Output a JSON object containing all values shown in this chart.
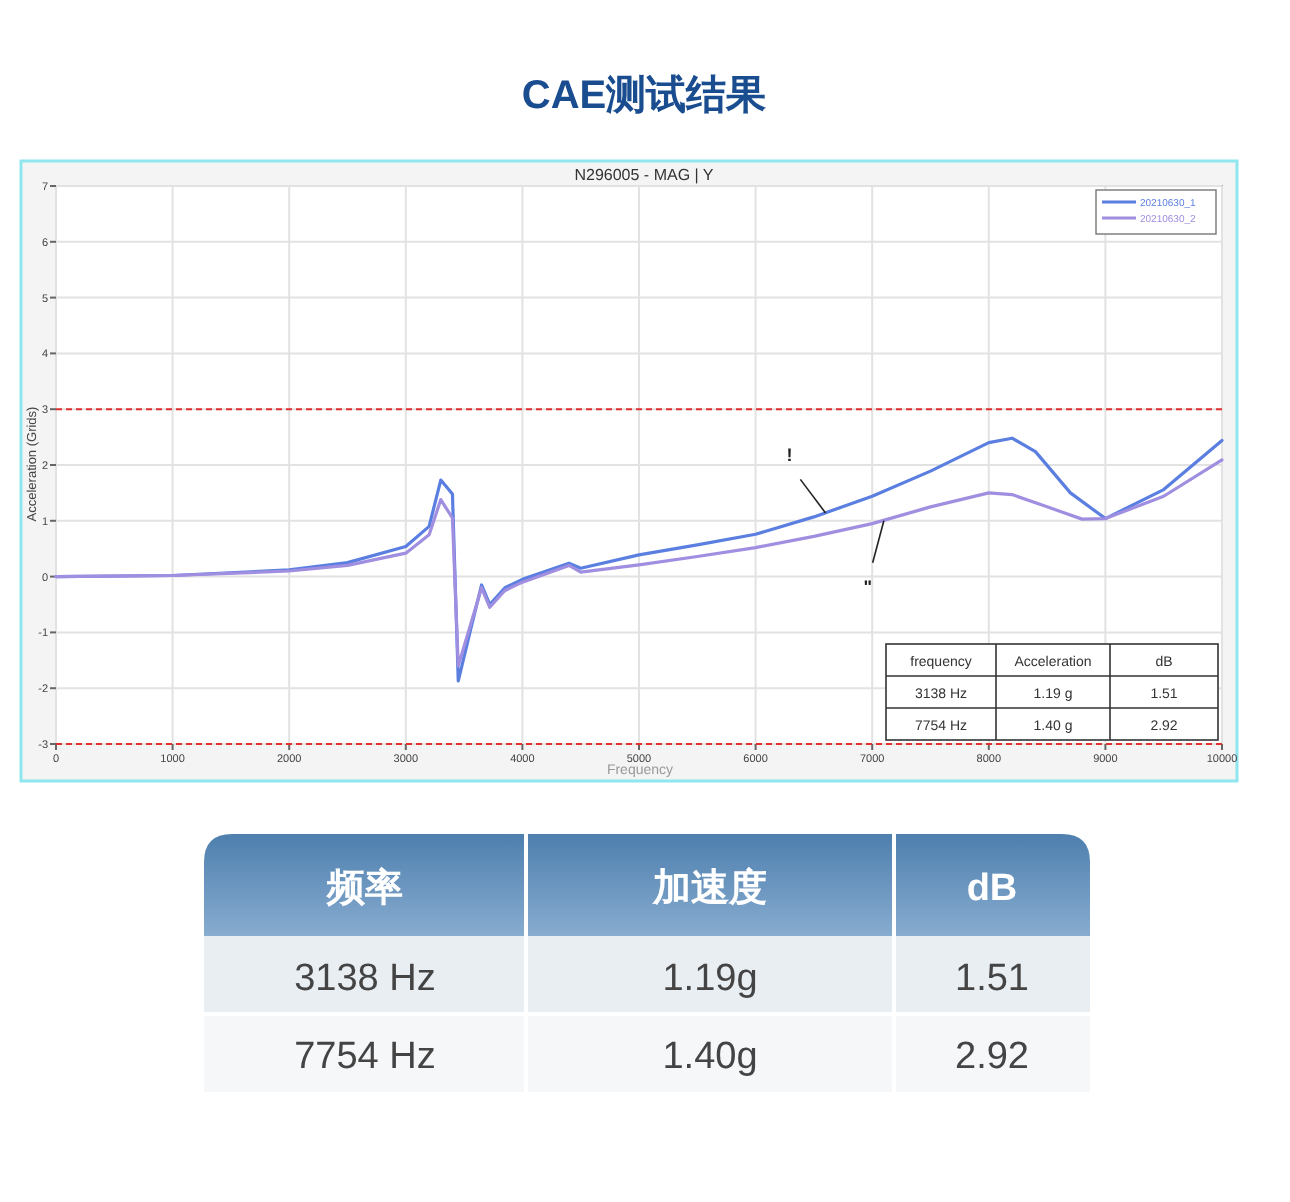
{
  "chart_data": {
    "type": "line",
    "title": "CAE测试结果",
    "subtitle": "N296005 - MAG | Y",
    "xlabel": "Frequency",
    "ylabel": "Acceleration (Grids)",
    "xlim": [
      0,
      10000
    ],
    "ylim": [
      -3,
      7
    ],
    "xticks": [
      0,
      1000,
      2000,
      3000,
      4000,
      5000,
      6000,
      7000,
      8000,
      9000,
      10000
    ],
    "yticks": [
      -3,
      -2,
      -1,
      0,
      1,
      2,
      3,
      4,
      5,
      6,
      7
    ],
    "grid": true,
    "legend": "top right",
    "series": [
      {
        "name": "20210630_1",
        "color": "#5b7fe0",
        "x": [
          0,
          1000,
          2000,
          2500,
          3000,
          3200,
          3300,
          3400,
          3450,
          3550,
          3650,
          3720,
          3850,
          4000,
          4400,
          4500,
          5000,
          5500,
          6000,
          6500,
          7000,
          7500,
          8000,
          8200,
          8400,
          8700,
          9000,
          9500,
          10000
        ],
        "values": [
          0,
          0.02,
          0.12,
          0.25,
          0.54,
          0.9,
          1.73,
          1.48,
          -1.87,
          -1.0,
          -0.15,
          -0.5,
          -0.2,
          -0.05,
          0.24,
          0.15,
          0.39,
          0.57,
          0.76,
          1.07,
          1.44,
          1.89,
          2.4,
          2.48,
          2.24,
          1.5,
          1.04,
          1.56,
          2.44
        ]
      },
      {
        "name": "20210630_2",
        "color": "#a08ee0",
        "x": [
          0,
          1000,
          2000,
          2500,
          3000,
          3200,
          3300,
          3400,
          3450,
          3550,
          3650,
          3720,
          3850,
          4000,
          4400,
          4500,
          5000,
          5500,
          6000,
          6500,
          7000,
          7500,
          8000,
          8200,
          8500,
          8800,
          9000,
          9500,
          10000
        ],
        "values": [
          0,
          0.02,
          0.1,
          0.2,
          0.42,
          0.75,
          1.38,
          1.05,
          -1.6,
          -0.9,
          -0.2,
          -0.55,
          -0.25,
          -0.1,
          0.2,
          0.08,
          0.21,
          0.36,
          0.52,
          0.72,
          0.95,
          1.25,
          1.5,
          1.47,
          1.25,
          1.03,
          1.04,
          1.44,
          2.09
        ]
      }
    ],
    "ref_lines": [
      {
        "axis": "y",
        "value": 3,
        "color": "#e03030",
        "line_style": "dashed"
      },
      {
        "axis": "y",
        "value": -3,
        "color": "#e03030",
        "line_style": "dashed"
      }
    ],
    "annotations": [
      {
        "text": "!",
        "x": 6600,
        "y": 1.14
      },
      {
        "text": "\"",
        "x": 7100,
        "y": 1.0
      },
      "frequency",
      "Acceleration",
      "dB",
      "3138 Hz",
      "1.19 g",
      "1.51",
      "7754 Hz",
      "1.40 g",
      "2.92",
      "频率",
      "加速度",
      "dB",
      "3138 Hz",
      "1.19g",
      "1.51",
      "7754 Hz",
      "1.40g",
      "2.92"
    ]
  }
}
